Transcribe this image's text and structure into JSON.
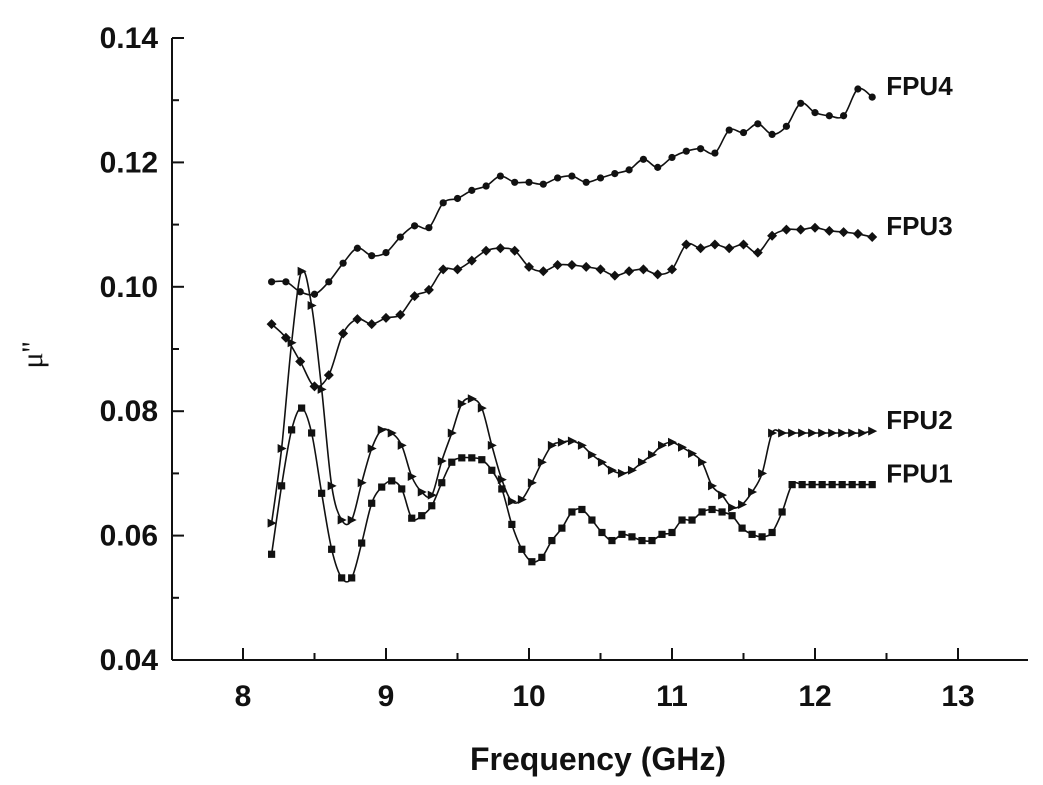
{
  "chart_data": {
    "type": "line",
    "xlabel": "Frequency (GHz)",
    "ylabel": "μ''",
    "xlim": [
      7.5,
      15.0
    ],
    "ylim": [
      0.04,
      0.14
    ],
    "xticks": [
      "8",
      "9",
      "10",
      "11",
      "12",
      "13"
    ],
    "yticks": [
      "0.04",
      "0.06",
      "0.08",
      "0.10",
      "0.12",
      "0.14"
    ],
    "grid": false,
    "legend": "inline labels at line ends",
    "series": [
      {
        "name": "FPU4",
        "marker": "circle",
        "color": "#111111",
        "x": [
          8.2,
          8.3,
          8.4,
          8.5,
          8.6,
          8.7,
          8.8,
          8.9,
          9.0,
          9.1,
          9.2,
          9.3,
          9.4,
          9.5,
          9.6,
          9.7,
          9.8,
          9.9,
          10.0,
          10.1,
          10.2,
          10.3,
          10.4,
          10.5,
          10.6,
          10.7,
          10.8,
          10.9,
          11.0,
          11.1,
          11.2,
          11.3,
          11.4,
          11.5,
          11.6,
          11.7,
          11.8,
          11.9,
          12.0,
          12.1,
          12.2,
          12.3,
          12.4
        ],
        "y": [
          0.1008,
          0.1008,
          0.0992,
          0.0988,
          0.1008,
          0.1038,
          0.1062,
          0.105,
          0.1055,
          0.108,
          0.1098,
          0.1095,
          0.1135,
          0.1142,
          0.1155,
          0.1162,
          0.1178,
          0.1168,
          0.1168,
          0.1165,
          0.1175,
          0.1178,
          0.1168,
          0.1175,
          0.1182,
          0.1188,
          0.1205,
          0.1192,
          0.1208,
          0.1218,
          0.1222,
          0.1215,
          0.1252,
          0.1248,
          0.1262,
          0.1245,
          0.1258,
          0.1295,
          0.128,
          0.1275,
          0.1275,
          0.1318,
          0.1305
        ]
      },
      {
        "name": "FPU3",
        "marker": "diamond",
        "color": "#111111",
        "x": [
          8.2,
          8.3,
          8.4,
          8.5,
          8.6,
          8.7,
          8.8,
          8.9,
          9.0,
          9.1,
          9.2,
          9.3,
          9.4,
          9.5,
          9.6,
          9.7,
          9.8,
          9.9,
          10.0,
          10.1,
          10.2,
          10.3,
          10.4,
          10.5,
          10.6,
          10.7,
          10.8,
          10.9,
          11.0,
          11.1,
          11.2,
          11.3,
          11.4,
          11.5,
          11.6,
          11.7,
          11.8,
          11.9,
          12.0,
          12.1,
          12.2,
          12.3,
          12.4
        ],
        "y": [
          0.094,
          0.0918,
          0.088,
          0.084,
          0.0858,
          0.0925,
          0.0948,
          0.094,
          0.095,
          0.0955,
          0.0985,
          0.0995,
          0.1028,
          0.1028,
          0.1042,
          0.1058,
          0.1062,
          0.1058,
          0.1032,
          0.1025,
          0.1035,
          0.1035,
          0.1032,
          0.1028,
          0.1018,
          0.1025,
          0.1028,
          0.102,
          0.1028,
          0.1068,
          0.1062,
          0.1068,
          0.1062,
          0.1068,
          0.1055,
          0.1082,
          0.1092,
          0.1092,
          0.1095,
          0.109,
          0.1088,
          0.1085,
          0.108
        ]
      },
      {
        "name": "FPU2",
        "marker": "triangle-right",
        "color": "#111111",
        "x": [
          8.2,
          8.27,
          8.34,
          8.41,
          8.48,
          8.55,
          8.62,
          8.69,
          8.76,
          8.83,
          8.9,
          8.97,
          9.04,
          9.11,
          9.18,
          9.25,
          9.32,
          9.39,
          9.46,
          9.53,
          9.6,
          9.67,
          9.74,
          9.81,
          9.88,
          9.95,
          10.02,
          10.09,
          10.16,
          10.23,
          10.3,
          10.37,
          10.44,
          10.51,
          10.58,
          10.65,
          10.72,
          10.79,
          10.86,
          10.93,
          11.0,
          11.07,
          11.14,
          11.21,
          11.28,
          11.35,
          11.42,
          11.49,
          11.56,
          11.63,
          11.7,
          11.77,
          11.84,
          11.91,
          11.98,
          12.05,
          12.12,
          12.19,
          12.26,
          12.33,
          12.4
        ],
        "y": [
          0.062,
          0.074,
          0.091,
          0.1025,
          0.097,
          0.0835,
          0.068,
          0.0625,
          0.0625,
          0.0685,
          0.074,
          0.077,
          0.0765,
          0.0745,
          0.0695,
          0.067,
          0.0665,
          0.072,
          0.0765,
          0.0812,
          0.082,
          0.0805,
          0.0745,
          0.069,
          0.0655,
          0.0658,
          0.0685,
          0.0718,
          0.0745,
          0.075,
          0.0752,
          0.0745,
          0.073,
          0.0718,
          0.0705,
          0.07,
          0.0705,
          0.0718,
          0.073,
          0.0745,
          0.075,
          0.0742,
          0.0732,
          0.0718,
          0.068,
          0.0665,
          0.0645,
          0.065,
          0.067,
          0.07,
          0.0765,
          0.0765,
          0.0765,
          0.0765,
          0.0765,
          0.0765,
          0.0765,
          0.0765,
          0.0765,
          0.0765,
          0.0768
        ]
      },
      {
        "name": "FPU1",
        "marker": "square",
        "color": "#111111",
        "x": [
          8.2,
          8.27,
          8.34,
          8.41,
          8.48,
          8.55,
          8.62,
          8.69,
          8.76,
          8.83,
          8.9,
          8.97,
          9.04,
          9.11,
          9.18,
          9.25,
          9.32,
          9.39,
          9.46,
          9.53,
          9.6,
          9.67,
          9.74,
          9.81,
          9.88,
          9.95,
          10.02,
          10.09,
          10.16,
          10.23,
          10.3,
          10.37,
          10.44,
          10.51,
          10.58,
          10.65,
          10.72,
          10.79,
          10.86,
          10.93,
          11.0,
          11.07,
          11.14,
          11.21,
          11.28,
          11.35,
          11.42,
          11.49,
          11.56,
          11.63,
          11.7,
          11.77,
          11.84,
          11.91,
          11.98,
          12.05,
          12.12,
          12.19,
          12.26,
          12.33,
          12.4
        ],
        "y": [
          0.057,
          0.068,
          0.077,
          0.0805,
          0.0765,
          0.0668,
          0.0578,
          0.0532,
          0.0532,
          0.0588,
          0.0652,
          0.0678,
          0.0688,
          0.0675,
          0.0628,
          0.0632,
          0.0648,
          0.0685,
          0.0718,
          0.0725,
          0.0725,
          0.0722,
          0.0705,
          0.0675,
          0.0618,
          0.0578,
          0.0558,
          0.0565,
          0.0592,
          0.0612,
          0.0638,
          0.0642,
          0.0625,
          0.0605,
          0.0592,
          0.0602,
          0.0598,
          0.0592,
          0.0592,
          0.0602,
          0.0605,
          0.0625,
          0.0625,
          0.0638,
          0.0642,
          0.0638,
          0.0632,
          0.0612,
          0.0602,
          0.0598,
          0.0605,
          0.0638,
          0.0682,
          0.0682,
          0.0682,
          0.0682,
          0.0682,
          0.0682,
          0.0682,
          0.0682,
          0.0682
        ]
      }
    ]
  }
}
